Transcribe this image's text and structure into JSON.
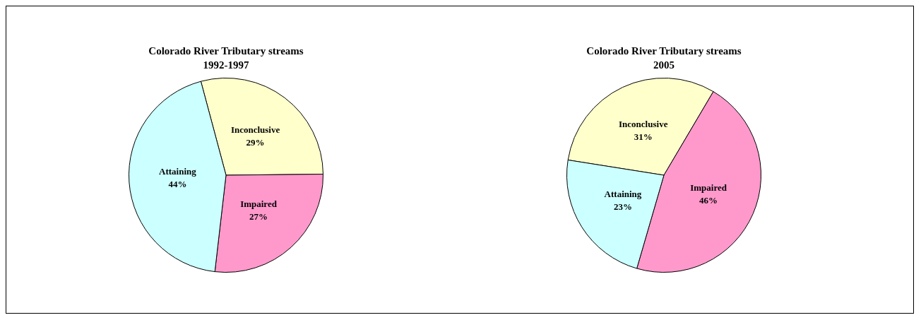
{
  "chart_data": [
    {
      "type": "pie",
      "title": "Colorado River Tributary streams",
      "subtitle": "1992-1997",
      "categories": [
        "Inconclusive",
        "Impaired",
        "Attaining"
      ],
      "values": [
        29,
        27,
        44
      ],
      "value_labels": [
        "29%",
        "27%",
        "44%"
      ],
      "colors": [
        "#ffffcc",
        "#ff99cc",
        "#ccffff"
      ],
      "legend": false
    },
    {
      "type": "pie",
      "title": "Colorado River Tributary streams",
      "subtitle": "2005",
      "categories": [
        "Inconclusive",
        "Impaired",
        "Attaining"
      ],
      "values": [
        31,
        46,
        23
      ],
      "value_labels": [
        "31%",
        "46%",
        "23%"
      ],
      "colors": [
        "#ffffcc",
        "#ff99cc",
        "#ccffff"
      ],
      "legend": false
    }
  ]
}
